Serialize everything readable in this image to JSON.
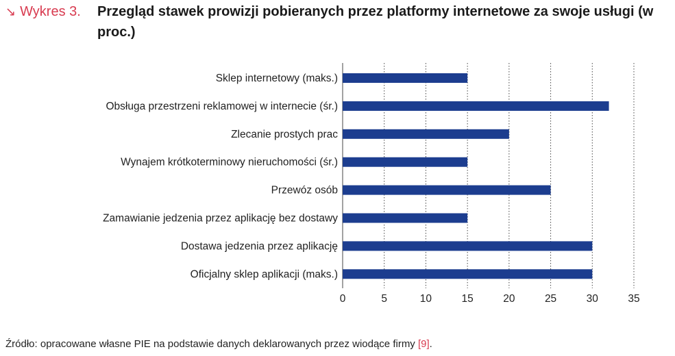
{
  "header": {
    "figure_label": "Wykres 3.",
    "title": "Przegląd stawek prowizji pobieranych przez platformy internetowe za swoje usługi (w proc.)"
  },
  "chart_data": {
    "type": "bar",
    "orientation": "horizontal",
    "categories": [
      "Sklep internetowy (maks.)",
      "Obsługa przestrzeni reklamowej w internecie (śr.)",
      "Zlecanie prostych prac",
      "Wynajem krótkoterminowy nieruchomości (śr.)",
      "Przewóz osób",
      "Zamawianie jedzenia przez aplikację bez dostawy",
      "Dostawa jedzenia przez aplikację",
      "Oficjalny sklep aplikacji (maks.)"
    ],
    "values": [
      15,
      32,
      20,
      15,
      25,
      15,
      30,
      30
    ],
    "xlim": [
      0,
      35
    ],
    "xticks": [
      "0",
      "5",
      "10",
      "15",
      "20",
      "25",
      "30",
      "35"
    ],
    "grid": "vertical-dotted",
    "bar_color": "#1c3d8f"
  },
  "source": {
    "text": "Źródło: opracowane własne PIE na podstawie danych deklarowanych przez wiodące firmy ",
    "ref": "[9]",
    "end": "."
  }
}
